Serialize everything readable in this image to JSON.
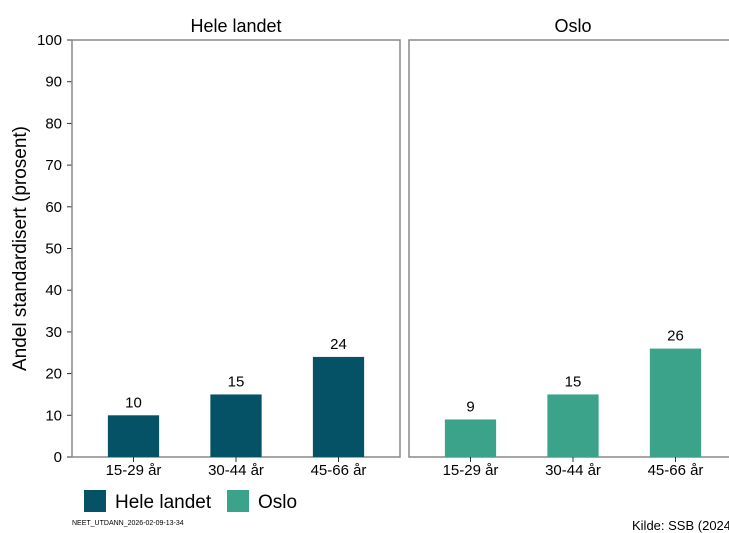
{
  "chart_data": {
    "type": "bar",
    "ylabel": "Andel standardisert (prosent)",
    "ylim": [
      0,
      100
    ],
    "yticks": [
      0,
      10,
      20,
      30,
      40,
      50,
      60,
      70,
      80,
      90,
      100
    ],
    "categories": [
      "15-29 år",
      "30-44 år",
      "45-66 år"
    ],
    "panels": [
      {
        "title": "Hele landet",
        "color": "#055166",
        "values": [
          10,
          15,
          24
        ]
      },
      {
        "title": "Oslo",
        "color": "#3aa389",
        "values": [
          9,
          15,
          26
        ]
      }
    ],
    "legend": [
      {
        "label": "Hele landet",
        "color": "#055166"
      },
      {
        "label": "Oslo",
        "color": "#3aa389"
      }
    ],
    "legend_position": "bottom-left",
    "grid": false
  },
  "footer": {
    "id": "NEET_UTDANN_2026-02-09-13-34",
    "source": "Kilde: SSB (2024"
  }
}
